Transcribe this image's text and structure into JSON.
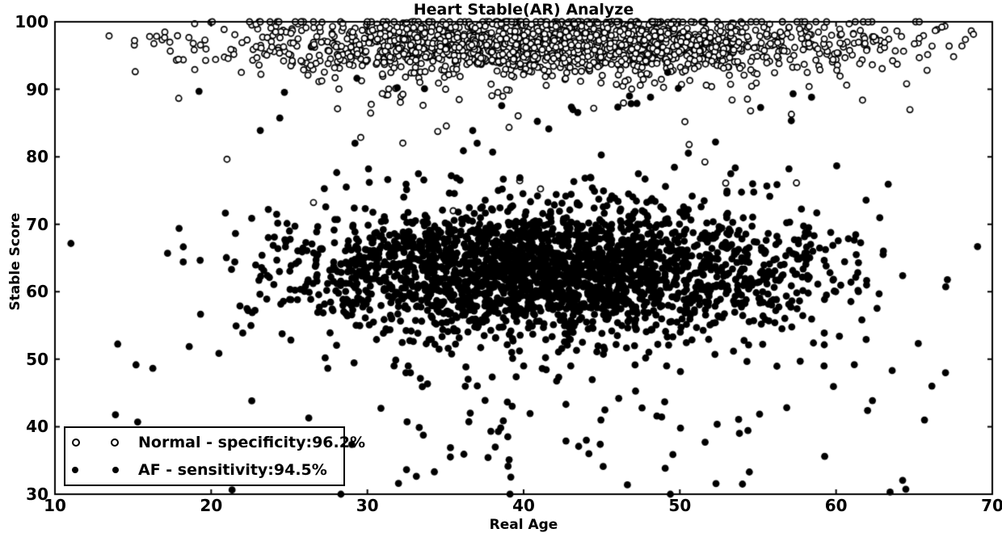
{
  "chart_data": {
    "type": "scatter",
    "title": "Heart Stable(AR) Analyze",
    "xlabel": "Real Age",
    "ylabel": "Stable Score",
    "xlim": [
      10,
      70
    ],
    "ylim": [
      30,
      100
    ],
    "x_ticks": [
      10,
      20,
      30,
      40,
      50,
      60,
      70
    ],
    "y_ticks": [
      30,
      40,
      50,
      60,
      70,
      80,
      90,
      100
    ],
    "grid": false,
    "legend_position": "lower left",
    "marker_color": "#000000",
    "background_color": "#ffffff",
    "seed": 42,
    "series": [
      {
        "name": "Normal - specificity:96.2%",
        "marker": "open-circle",
        "legend_label": "Normal - specificity:96.2%",
        "specificity_pct": 96.2,
        "clusters": [
          {
            "count": 1750,
            "x_mean": 42,
            "x_std": 10.5,
            "x_min": 11,
            "x_max": 69.3,
            "y_mean": 96.7,
            "y_std": 2.1,
            "y_min": 90,
            "y_max": 100
          },
          {
            "count": 60,
            "x_mean": 41,
            "x_std": 11,
            "x_min": 13,
            "x_max": 67,
            "y_mean": 90,
            "y_std": 2.2,
            "y_min": 84.5,
            "y_max": 93.5
          },
          {
            "count": 13,
            "x_mean": 39,
            "x_std": 11,
            "x_min": 19,
            "x_max": 62,
            "y_mean": 79.5,
            "y_std": 3.5,
            "y_min": 72,
            "y_max": 87
          }
        ]
      },
      {
        "name": "AF - sensitivity:94.5%",
        "marker": "filled-circle",
        "legend_label": "AF - sensitivity:94.5%",
        "sensitivity_pct": 94.5,
        "clusters": [
          {
            "count": 2300,
            "x_mean": 41.5,
            "x_std": 8.2,
            "x_min": 21,
            "x_max": 63,
            "y_mean": 63.2,
            "y_std": 4.8,
            "y_min": 49,
            "y_max": 77.5
          },
          {
            "count": 300,
            "x_mean": 41,
            "x_std": 12,
            "x_min": 11,
            "x_max": 69.5,
            "y_mean": 62.5,
            "y_std": 9.5,
            "y_min": 41,
            "y_max": 89
          },
          {
            "count": 70,
            "x_mean": 42,
            "x_std": 13,
            "x_min": 12,
            "x_max": 67.5,
            "y_mean": 38.5,
            "y_std": 5,
            "y_min": 30,
            "y_max": 48
          },
          {
            "count": 26,
            "x_mean": 42,
            "x_std": 12.5,
            "x_min": 16,
            "x_max": 66,
            "y_mean": 86.5,
            "y_std": 2.6,
            "y_min": 82,
            "y_max": 92.5
          }
        ]
      }
    ]
  }
}
